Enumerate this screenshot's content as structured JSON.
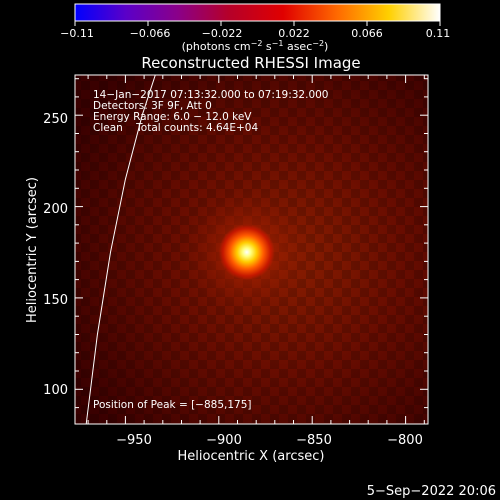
{
  "chart_data": {
    "type": "heatmap",
    "title": "Reconstructed RHESSI Image",
    "xlabel": "Heliocentric X (arcsec)",
    "ylabel": "Heliocentric Y (arcsec)",
    "xlim": [
      -977,
      -788
    ],
    "ylim": [
      81,
      272
    ],
    "x_ticks": [
      -950,
      -900,
      -850,
      -800
    ],
    "x_tick_labels": [
      "−950",
      "−900",
      "−850",
      "−800"
    ],
    "y_ticks": [
      100,
      150,
      200,
      250
    ],
    "y_tick_labels": [
      "100",
      "150",
      "200",
      "250"
    ],
    "peak": {
      "x": -885,
      "y": 175,
      "value": 0.11
    },
    "limb_curve": [
      [
        -971,
        81
      ],
      [
        -965,
        130
      ],
      [
        -958,
        175
      ],
      [
        -950,
        215
      ],
      [
        -941,
        250
      ],
      [
        -934,
        272
      ]
    ],
    "colorbar": {
      "min": -0.11,
      "max": 0.11,
      "ticks": [
        -0.11,
        -0.066,
        -0.022,
        0.022,
        0.066,
        0.11
      ],
      "tick_labels": [
        "−0.11",
        "−0.066",
        "−0.022",
        "0.022",
        "0.066",
        "0.11"
      ],
      "colormap": [
        "#0000ff",
        "#5b00c8",
        "#8a008a",
        "#b5002a",
        "#e00000",
        "#ff6a00",
        "#ffd000",
        "#ffffff"
      ]
    },
    "annotations": [
      "14−Jan−2017 07:13:32.000 to 07:19:32.000",
      "Detectors: 3F 9F, Att 0",
      "Energy Range: 6.0 − 12.0 keV",
      "Clean    Total counts: 4.64E+04"
    ],
    "peak_label": "Position of Peak = [−885,175]",
    "grid": false
  },
  "footer": {
    "timestamp": "5−Sep−2022 20:06"
  }
}
